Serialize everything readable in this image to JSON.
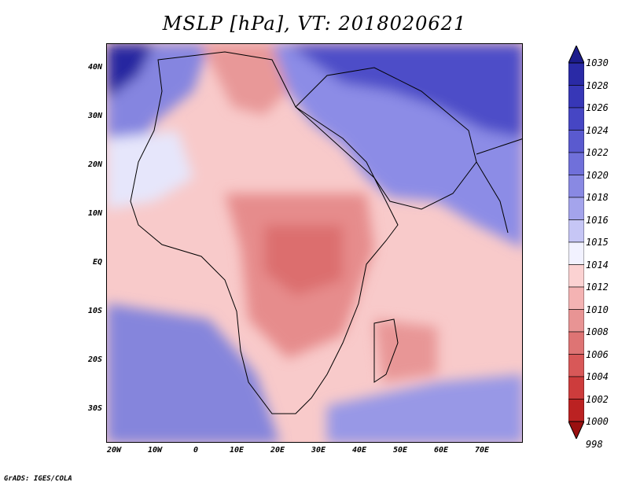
{
  "title": "MSLP [hPa], VT: 2018020621",
  "axes": {
    "lat_labels": [
      "40N",
      "30N",
      "20N",
      "10N",
      "EQ",
      "10S",
      "20S",
      "30S"
    ],
    "lon_labels": [
      "20W",
      "10W",
      "0",
      "10E",
      "20E",
      "30E",
      "40E",
      "50E",
      "60E",
      "70E"
    ]
  },
  "colorbar": {
    "levels": [
      "1030",
      "1028",
      "1026",
      "1024",
      "1022",
      "1020",
      "1018",
      "1016",
      "1015",
      "1014",
      "1012",
      "1010",
      "1008",
      "1006",
      "1004",
      "1002",
      "1000",
      "998"
    ],
    "colors": [
      "#1c1c8c",
      "#2a2aa6",
      "#3737b7",
      "#4646c4",
      "#5a5acf",
      "#7070da",
      "#8989e3",
      "#a4a4ec",
      "#c6c6f5",
      "#f2f2ff",
      "#fbd2d2",
      "#f4b3b3",
      "#e89494",
      "#de7474",
      "#d85858",
      "#cd3c3c",
      "#bb2222",
      "#9a1010"
    ]
  },
  "footer": "GrADS: IGES/COLA"
}
